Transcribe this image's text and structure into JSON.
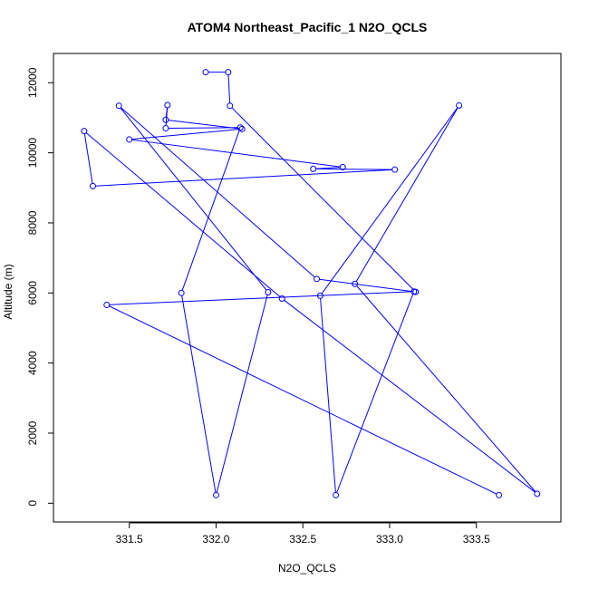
{
  "chart_data": {
    "type": "line",
    "title": "ATOM4 Northeast_Pacific_1 N2O_QCLS",
    "xlabel": "N2O_QCLS",
    "ylabel": "Altitude (m)",
    "xlim": [
      331.18,
      333.87
    ],
    "ylim": [
      0,
      12300
    ],
    "xticks": [
      "331.5",
      "332.0",
      "332.5",
      "333.0",
      "333.5"
    ],
    "xtick_values": [
      331.5,
      332.0,
      332.5,
      333.0,
      333.5
    ],
    "yticks": [
      "0",
      "2000",
      "4000",
      "6000",
      "8000",
      "10000",
      "12000"
    ],
    "ytick_values": [
      0,
      2000,
      4000,
      6000,
      8000,
      10000,
      12000
    ],
    "grid": false,
    "line_color": "#0000ff",
    "marker": "open-circle",
    "series": [
      {
        "x": [
          331.94,
          332.07,
          332.08,
          333.15,
          332.58,
          331.44,
          332.3,
          332.0,
          331.8,
          332.14,
          331.71,
          331.72,
          331.71,
          332.15,
          331.5,
          332.73,
          332.56,
          333.03,
          331.29,
          331.24,
          332.38,
          333.85,
          332.8,
          333.4,
          332.6,
          332.69,
          333.14,
          331.37,
          333.63
        ],
        "y": [
          12300,
          12300,
          11340,
          6030,
          6400,
          11340,
          6020,
          230,
          6000,
          10720,
          10700,
          11360,
          10940,
          10680,
          10380,
          9590,
          9540,
          9520,
          9050,
          10620,
          5840,
          270,
          6260,
          11350,
          5920,
          230,
          6040,
          5660,
          230
        ]
      }
    ]
  }
}
